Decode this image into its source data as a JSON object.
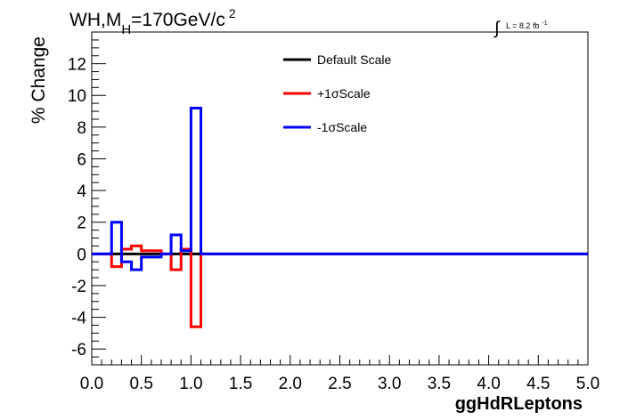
{
  "chart_data": {
    "type": "line",
    "title": {
      "prefix": "WH,M",
      "subscript": "H",
      "value": "=170GeV/c",
      "superscript": "2"
    },
    "lumi": {
      "integral": "∫",
      "text": "L = 8.2 fb",
      "superscript": "-1"
    },
    "xlabel": "ggHdRLeptons",
    "ylabel": "% Change",
    "xlim": [
      0.0,
      5.0
    ],
    "ylim": [
      -7,
      14
    ],
    "x_ticks": [
      "0.0",
      "0.5",
      "1.0",
      "1.5",
      "2.0",
      "2.5",
      "3.0",
      "3.5",
      "4.0",
      "4.5",
      "5.0"
    ],
    "y_ticks": [
      "-6",
      "-4",
      "-2",
      "0",
      "2",
      "4",
      "6",
      "8",
      "10",
      "12"
    ],
    "grid": false,
    "legend_position": "top-center",
    "bin_edges": [
      0.0,
      0.1,
      0.2,
      0.3,
      0.4,
      0.5,
      0.6,
      0.7,
      0.8,
      0.9,
      1.0,
      1.1,
      1.2,
      1.3,
      1.4,
      1.5,
      1.6,
      1.7,
      1.8,
      1.9,
      2.0,
      2.1,
      2.2,
      2.3,
      2.4,
      2.5,
      2.6,
      2.7,
      2.8,
      2.9,
      3.0,
      3.1,
      3.2,
      3.3,
      3.4,
      3.5,
      3.6,
      3.7,
      3.8,
      3.9,
      4.0,
      4.1,
      4.2,
      4.3,
      4.4,
      4.5,
      4.6,
      4.7,
      4.8,
      4.9,
      5.0
    ],
    "series": [
      {
        "name": "Default Scale",
        "color": "#000000",
        "values": [
          0,
          0,
          0,
          0,
          0,
          0,
          0,
          0,
          0,
          0,
          0,
          0,
          0,
          0,
          0,
          0,
          0,
          0,
          0,
          0,
          0,
          0,
          0,
          0,
          0,
          0,
          0,
          0,
          0,
          0,
          0,
          0,
          0,
          0,
          0,
          0,
          0,
          0,
          0,
          0,
          0,
          0,
          0,
          0,
          0,
          0,
          0,
          0,
          0,
          0
        ]
      },
      {
        "name": "+1σScale",
        "color": "#ff0000",
        "values": [
          0,
          0,
          -0.8,
          0.3,
          0.5,
          0.2,
          0.2,
          0,
          -1.0,
          0.3,
          -4.6,
          0,
          0,
          0,
          0,
          0,
          0,
          0,
          0,
          0,
          0,
          0,
          0,
          0,
          0,
          0,
          0,
          0,
          0,
          0,
          0,
          0,
          0,
          0,
          0,
          0,
          0,
          0,
          0,
          0,
          0,
          0,
          0,
          0,
          0,
          0,
          0,
          0,
          0,
          0
        ]
      },
      {
        "name": "-1σScale",
        "color": "#0000ff",
        "values": [
          0,
          0,
          2.0,
          -0.5,
          -1.0,
          -0.2,
          -0.2,
          0,
          1.2,
          0.2,
          9.2,
          0,
          0,
          0,
          0,
          0,
          0,
          0,
          0,
          0,
          0,
          0,
          0,
          0,
          0,
          0,
          0,
          0,
          0,
          0,
          0,
          0,
          0,
          0,
          0,
          0,
          0,
          0,
          0,
          0,
          0,
          0,
          0,
          0,
          0,
          0,
          0,
          0,
          0,
          0
        ]
      }
    ]
  }
}
